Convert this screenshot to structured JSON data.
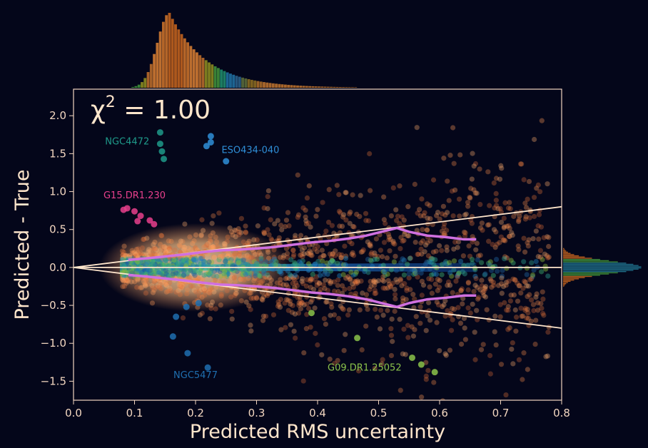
{
  "chart_data": {
    "type": "scatter",
    "annotation_chi2": {
      "symbol": "χ",
      "exponent": "2",
      "text": " = 1.00"
    },
    "xlabel": "Predicted RMS uncertainty",
    "ylabel": "Predicted - True",
    "xlim": [
      0.0,
      0.8
    ],
    "ylim": [
      -1.75,
      2.35
    ],
    "x_ticks": [
      0.0,
      0.1,
      0.2,
      0.3,
      0.4,
      0.5,
      0.6,
      0.7,
      0.8
    ],
    "x_tick_labels": [
      "0.0",
      "0.1",
      "0.2",
      "0.3",
      "0.4",
      "0.5",
      "0.6",
      "0.7",
      "0.8"
    ],
    "y_ticks": [
      2.0,
      1.5,
      1.0,
      0.5,
      0.0,
      -0.5,
      -1.0,
      -1.5
    ],
    "y_tick_labels": [
      "2.0",
      "1.5",
      "1.0",
      "0.5",
      "0.0",
      "−0.5",
      "−1.0",
      "−1.5"
    ],
    "grid": false,
    "reference_lines": {
      "zero": 0.0,
      "envelope_slope": 1.0
    },
    "labeled_points": [
      {
        "name": "NGC4472",
        "color": "#1f9a8a",
        "points": [
          [
            0.142,
            1.78
          ],
          [
            0.142,
            1.63
          ],
          [
            0.145,
            1.53
          ],
          [
            0.148,
            1.43
          ]
        ],
        "label_at": [
          0.088,
          1.62
        ]
      },
      {
        "name": "ESO434-040",
        "color": "#2f8fd8",
        "points": [
          [
            0.225,
            1.73
          ],
          [
            0.225,
            1.65
          ],
          [
            0.218,
            1.6
          ],
          [
            0.25,
            1.4
          ]
        ],
        "label_at": [
          0.29,
          1.51
        ]
      },
      {
        "name": "G15.DR1.230",
        "color": "#e8408c",
        "points": [
          [
            0.082,
            0.76
          ],
          [
            0.088,
            0.78
          ],
          [
            0.1,
            0.74
          ],
          [
            0.11,
            0.68
          ],
          [
            0.105,
            0.61
          ],
          [
            0.125,
            0.62
          ],
          [
            0.132,
            0.57
          ]
        ],
        "label_at": [
          0.1,
          0.91
        ]
      },
      {
        "name": "NGC5477",
        "color": "#1f6fb0",
        "points": [
          [
            0.185,
            -0.52
          ],
          [
            0.205,
            -0.47
          ],
          [
            0.168,
            -0.65
          ],
          [
            0.163,
            -0.91
          ],
          [
            0.187,
            -1.13
          ],
          [
            0.22,
            -1.32
          ]
        ],
        "label_at": [
          0.2,
          -1.46
        ]
      },
      {
        "name": "G09.DR1.25052",
        "color": "#8bc34a",
        "points": [
          [
            0.555,
            -1.19
          ],
          [
            0.57,
            -1.28
          ],
          [
            0.592,
            -1.38
          ],
          [
            0.465,
            -0.93
          ],
          [
            0.39,
            -0.6
          ]
        ],
        "label_at": [
          0.477,
          -1.36
        ]
      }
    ],
    "running_rms": {
      "color": "#d070e0",
      "x": [
        0.09,
        0.12,
        0.15,
        0.18,
        0.21,
        0.24,
        0.27,
        0.3,
        0.33,
        0.36,
        0.39,
        0.42,
        0.45,
        0.48,
        0.51,
        0.53,
        0.55,
        0.58,
        0.61,
        0.64,
        0.66
      ],
      "y": [
        0.1,
        0.12,
        0.145,
        0.17,
        0.2,
        0.225,
        0.235,
        0.25,
        0.27,
        0.3,
        0.33,
        0.35,
        0.38,
        0.42,
        0.48,
        0.52,
        0.47,
        0.42,
        0.4,
        0.37,
        0.37
      ]
    }
  }
}
